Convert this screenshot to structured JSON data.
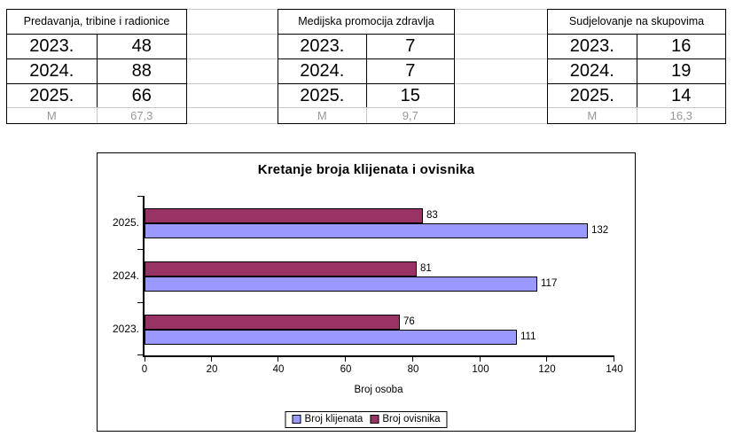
{
  "tables": [
    {
      "title": "Predavanja, tribine i radionice",
      "rows": [
        [
          "2023.",
          "48"
        ],
        [
          "2024.",
          "88"
        ],
        [
          "2025.",
          "66"
        ]
      ],
      "mean_row": [
        "M",
        "67,3"
      ]
    },
    {
      "title": "Medijska promocija zdravlja",
      "rows": [
        [
          "2023.",
          "7"
        ],
        [
          "2024.",
          "7"
        ],
        [
          "2025.",
          "15"
        ]
      ],
      "mean_row": [
        "M",
        "9,7"
      ]
    },
    {
      "title": "Sudjelovanje na skupovima",
      "rows": [
        [
          "2023.",
          "16"
        ],
        [
          "2024.",
          "19"
        ],
        [
          "2025.",
          "14"
        ]
      ],
      "mean_row": [
        "M",
        "16,3"
      ]
    }
  ],
  "chart_data": {
    "type": "bar",
    "orientation": "horizontal",
    "title": "Kretanje broja klijenata i ovisnika",
    "categories": [
      "2025.",
      "2024.",
      "2023."
    ],
    "series": [
      {
        "name": "Broj klijenata",
        "color": "#9999FF",
        "values": [
          132,
          117,
          111
        ]
      },
      {
        "name": "Broj ovisnika",
        "color": "#993366",
        "values": [
          83,
          81,
          76
        ]
      }
    ],
    "xlabel": "Broj osoba",
    "xlim": [
      0,
      140
    ],
    "xticks": [
      0,
      20,
      40,
      60,
      80,
      100,
      120,
      140
    ],
    "grid": false,
    "data_labels": true,
    "legend_position": "bottom"
  },
  "colors": {
    "bar_border": "#000000",
    "series_klijenata": "#9999FF",
    "series_ovisnika": "#993366",
    "gridline_gray": "#c9c9c9",
    "mean_text_gray": "#979797"
  }
}
